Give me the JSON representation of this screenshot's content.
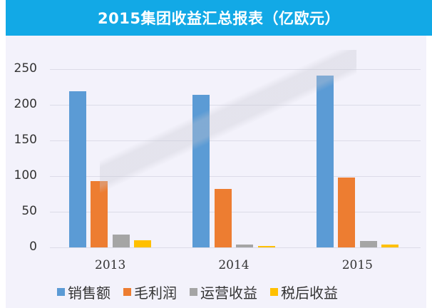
{
  "title": "2015集团收益汇总报表（亿欧元）",
  "chart_data": {
    "type": "bar",
    "title": "2015集团收益汇总报表（亿欧元）",
    "xlabel": "",
    "ylabel": "",
    "ylim": [
      0,
      250
    ],
    "yticks": [
      "0",
      "50",
      "100",
      "150",
      "200",
      "250"
    ],
    "grid": true,
    "legend_position": "bottom",
    "categories": [
      "2013",
      "2014",
      "2015"
    ],
    "series": [
      {
        "name": "销售额",
        "color": "#5b9bd5",
        "values": [
          219,
          214,
          241
        ]
      },
      {
        "name": "毛利润",
        "color": "#ed7d31",
        "values": [
          93,
          82,
          98
        ]
      },
      {
        "name": "运营收益",
        "color": "#a5a5a5",
        "values": [
          18,
          4,
          9
        ]
      },
      {
        "name": "税后收益",
        "color": "#ffc000",
        "values": [
          10,
          2,
          4
        ]
      }
    ]
  }
}
